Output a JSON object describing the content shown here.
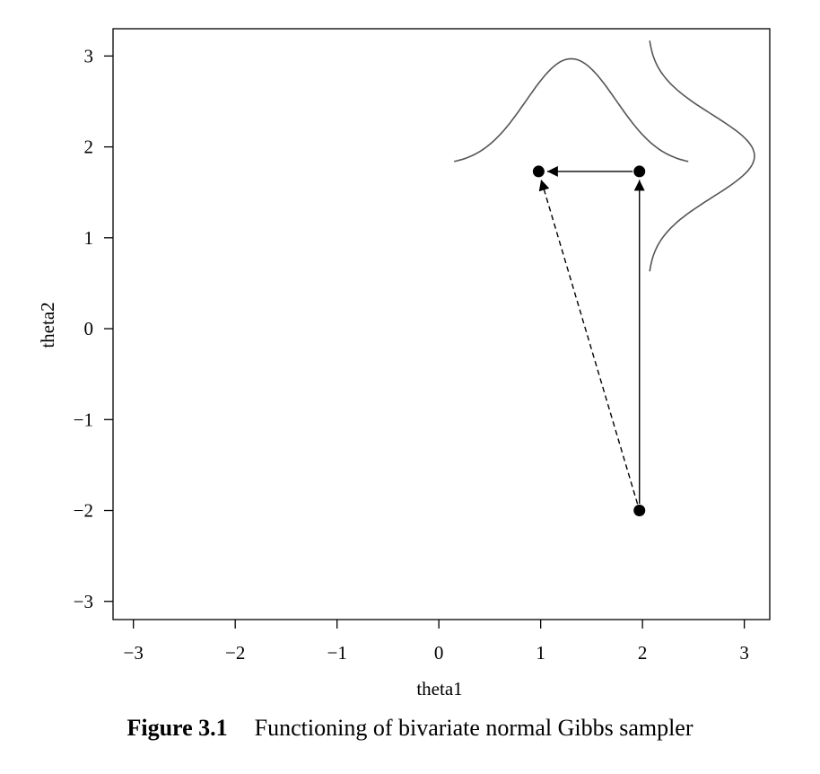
{
  "chart_data": {
    "type": "scatter",
    "title": "",
    "xlabel": "theta1",
    "ylabel": "theta2",
    "xlim": [
      -3.2,
      3.25
    ],
    "ylim": [
      -3.2,
      3.3
    ],
    "x_ticks": [
      -3,
      -2,
      -1,
      0,
      1,
      2,
      3
    ],
    "y_ticks": [
      -3,
      -2,
      -1,
      0,
      1,
      2,
      3
    ],
    "x_tick_labels": [
      "−3",
      "−2",
      "−1",
      "0",
      "1",
      "2",
      "3"
    ],
    "y_tick_labels": [
      "−3",
      "−2",
      "−1",
      "0",
      "1",
      "2",
      "3"
    ],
    "grid": false,
    "points": [
      {
        "x": 1.97,
        "y": -2.0
      },
      {
        "x": 1.97,
        "y": 1.73
      },
      {
        "x": 0.98,
        "y": 1.73
      }
    ],
    "arrows": [
      {
        "from": [
          1.97,
          -2.0
        ],
        "to": [
          1.97,
          1.73
        ],
        "style": "solid"
      },
      {
        "from": [
          1.97,
          1.73
        ],
        "to": [
          0.98,
          1.73
        ],
        "style": "solid"
      },
      {
        "from": [
          1.97,
          -2.0
        ],
        "to": [
          0.98,
          1.73
        ],
        "style": "dashed"
      }
    ],
    "conditional_density_theta1": {
      "description": "bell curve over theta1 drawn above the horizontal move",
      "x_range": [
        0.15,
        2.45
      ],
      "baseline_y": 1.8,
      "mean_x": 1.3,
      "peak_y": 2.97
    },
    "conditional_density_theta2": {
      "description": "bell curve over theta2 drawn to the right of the vertical move",
      "y_range": [
        0.63,
        3.17
      ],
      "baseline_x": 2.05,
      "mean_y": 1.9,
      "peak_x": 3.1
    },
    "colors": {
      "points": "#000000",
      "density_curve": "#555555",
      "axes": "#000000"
    }
  },
  "caption": {
    "figure_number": "Figure 3.1",
    "text": "Functioning of bivariate normal Gibbs sampler"
  }
}
